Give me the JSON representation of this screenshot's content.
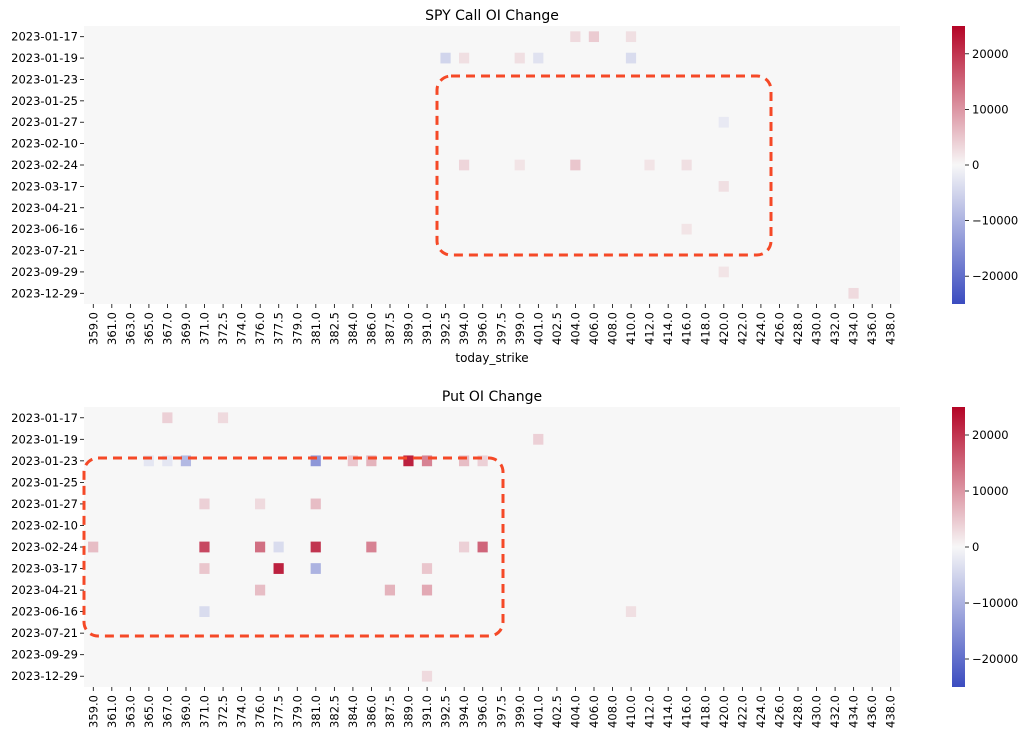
{
  "chart_data": [
    {
      "type": "heatmap",
      "title": "SPY Call OI Change",
      "xlabel": "today_strike",
      "ylabel": "",
      "y_categories": [
        "2023-01-17",
        "2023-01-19",
        "2023-01-23",
        "2023-01-25",
        "2023-01-27",
        "2023-02-10",
        "2023-02-24",
        "2023-03-17",
        "2023-04-21",
        "2023-06-16",
        "2023-07-21",
        "2023-09-29",
        "2023-12-29"
      ],
      "x_tick_labels": [
        "359.0",
        "361.0",
        "363.0",
        "365.0",
        "367.0",
        "369.0",
        "371.0",
        "372.5",
        "374.0",
        "376.0",
        "377.5",
        "379.0",
        "381.0",
        "382.5",
        "384.0",
        "386.0",
        "387.5",
        "389.0",
        "391.0",
        "392.5",
        "394.0",
        "396.0",
        "397.5",
        "399.0",
        "401.0",
        "402.5",
        "404.0",
        "406.0",
        "408.0",
        "410.0",
        "412.0",
        "414.0",
        "416.0",
        "418.0",
        "420.0",
        "422.0",
        "424.0",
        "426.0",
        "428.0",
        "430.0",
        "432.0",
        "434.0",
        "436.0",
        "438.0"
      ],
      "cells": [
        {
          "y": "2023-01-17",
          "x": "404.0",
          "value": 3000
        },
        {
          "y": "2023-01-17",
          "x": "406.0",
          "value": 4500
        },
        {
          "y": "2023-01-17",
          "x": "410.0",
          "value": 2500
        },
        {
          "y": "2023-01-19",
          "x": "392.5",
          "value": -5000
        },
        {
          "y": "2023-01-19",
          "x": "394.0",
          "value": 2500
        },
        {
          "y": "2023-01-19",
          "x": "399.0",
          "value": 2500
        },
        {
          "y": "2023-01-19",
          "x": "401.0",
          "value": -3000
        },
        {
          "y": "2023-01-19",
          "x": "410.0",
          "value": -4000
        },
        {
          "y": "2023-02-24",
          "x": "394.0",
          "value": 3500
        },
        {
          "y": "2023-02-24",
          "x": "399.0",
          "value": 2000
        },
        {
          "y": "2023-02-24",
          "x": "404.0",
          "value": 5000
        },
        {
          "y": "2023-02-24",
          "x": "412.0",
          "value": 2000
        },
        {
          "y": "2023-02-24",
          "x": "416.0",
          "value": 2500
        },
        {
          "y": "2023-01-27",
          "x": "420.0",
          "value": -2000
        },
        {
          "y": "2023-03-17",
          "x": "420.0",
          "value": 2500
        },
        {
          "y": "2023-06-16",
          "x": "416.0",
          "value": 2000
        },
        {
          "y": "2023-09-29",
          "x": "420.0",
          "value": 2000
        },
        {
          "y": "2023-12-29",
          "x": "434.0",
          "value": 3000
        }
      ],
      "colorbar": {
        "min": -25000,
        "max": 25000,
        "ticks": [
          20000,
          10000,
          0,
          -10000,
          -20000
        ]
      },
      "colors": {
        "low": "#3b4cc0",
        "mid": "#f7f7f7",
        "high": "#b40426",
        "highlight": "#f54927"
      }
    },
    {
      "type": "heatmap",
      "title": "Put OI Change",
      "xlabel": "",
      "ylabel": "",
      "y_categories": [
        "2023-01-17",
        "2023-01-19",
        "2023-01-23",
        "2023-01-25",
        "2023-01-27",
        "2023-02-10",
        "2023-02-24",
        "2023-03-17",
        "2023-04-21",
        "2023-06-16",
        "2023-07-21",
        "2023-09-29",
        "2023-12-29"
      ],
      "x_tick_labels": [
        "359.0",
        "361.0",
        "363.0",
        "365.0",
        "367.0",
        "369.0",
        "371.0",
        "372.5",
        "374.0",
        "376.0",
        "377.5",
        "379.0",
        "381.0",
        "382.5",
        "384.0",
        "386.0",
        "387.5",
        "389.0",
        "391.0",
        "392.5",
        "394.0",
        "396.0",
        "397.5",
        "399.0",
        "401.0",
        "402.5",
        "404.0",
        "406.0",
        "408.0",
        "410.0",
        "412.0",
        "414.0",
        "416.0",
        "418.0",
        "420.0",
        "422.0",
        "424.0",
        "426.0",
        "428.0",
        "430.0",
        "432.0",
        "434.0",
        "436.0",
        "438.0"
      ],
      "cells": [
        {
          "y": "2023-01-17",
          "x": "367.0",
          "value": 4000
        },
        {
          "y": "2023-01-17",
          "x": "372.5",
          "value": 3000
        },
        {
          "y": "2023-01-19",
          "x": "401.0",
          "value": 4000
        },
        {
          "y": "2023-01-23",
          "x": "369.0",
          "value": -9000
        },
        {
          "y": "2023-01-23",
          "x": "381.0",
          "value": -14000
        },
        {
          "y": "2023-01-23",
          "x": "384.0",
          "value": 5000
        },
        {
          "y": "2023-01-23",
          "x": "386.0",
          "value": 7000
        },
        {
          "y": "2023-01-23",
          "x": "389.0",
          "value": 22000
        },
        {
          "y": "2023-01-23",
          "x": "391.0",
          "value": 12000
        },
        {
          "y": "2023-01-23",
          "x": "394.0",
          "value": 6000
        },
        {
          "y": "2023-01-23",
          "x": "396.0",
          "value": 4000
        },
        {
          "y": "2023-01-23",
          "x": "365.0",
          "value": -2500
        },
        {
          "y": "2023-01-23",
          "x": "367.0",
          "value": -2500
        },
        {
          "y": "2023-01-27",
          "x": "371.0",
          "value": 4000
        },
        {
          "y": "2023-01-27",
          "x": "376.0",
          "value": 3000
        },
        {
          "y": "2023-01-27",
          "x": "381.0",
          "value": 6000
        },
        {
          "y": "2023-02-24",
          "x": "359.0",
          "value": 6000
        },
        {
          "y": "2023-02-24",
          "x": "371.0",
          "value": 18000
        },
        {
          "y": "2023-02-24",
          "x": "376.0",
          "value": 14000
        },
        {
          "y": "2023-02-24",
          "x": "377.5",
          "value": -4000
        },
        {
          "y": "2023-02-24",
          "x": "381.0",
          "value": 20000
        },
        {
          "y": "2023-02-24",
          "x": "386.0",
          "value": 12000
        },
        {
          "y": "2023-02-24",
          "x": "396.0",
          "value": 15000
        },
        {
          "y": "2023-02-24",
          "x": "394.0",
          "value": 4000
        },
        {
          "y": "2023-03-17",
          "x": "371.0",
          "value": 5000
        },
        {
          "y": "2023-03-17",
          "x": "377.5",
          "value": 22000
        },
        {
          "y": "2023-03-17",
          "x": "381.0",
          "value": -10000
        },
        {
          "y": "2023-03-17",
          "x": "391.0",
          "value": 5000
        },
        {
          "y": "2023-04-21",
          "x": "376.0",
          "value": 6000
        },
        {
          "y": "2023-04-21",
          "x": "387.5",
          "value": 7000
        },
        {
          "y": "2023-04-21",
          "x": "391.0",
          "value": 8000
        },
        {
          "y": "2023-06-16",
          "x": "371.0",
          "value": -4000
        },
        {
          "y": "2023-06-16",
          "x": "410.0",
          "value": 2500
        },
        {
          "y": "2023-12-29",
          "x": "391.0",
          "value": 3000
        }
      ],
      "colorbar": {
        "min": -25000,
        "max": 25000,
        "ticks": [
          20000,
          10000,
          0,
          -10000,
          -20000
        ]
      },
      "colors": {
        "low": "#3b4cc0",
        "mid": "#f7f7f7",
        "high": "#b40426",
        "highlight": "#f54927"
      }
    }
  ]
}
